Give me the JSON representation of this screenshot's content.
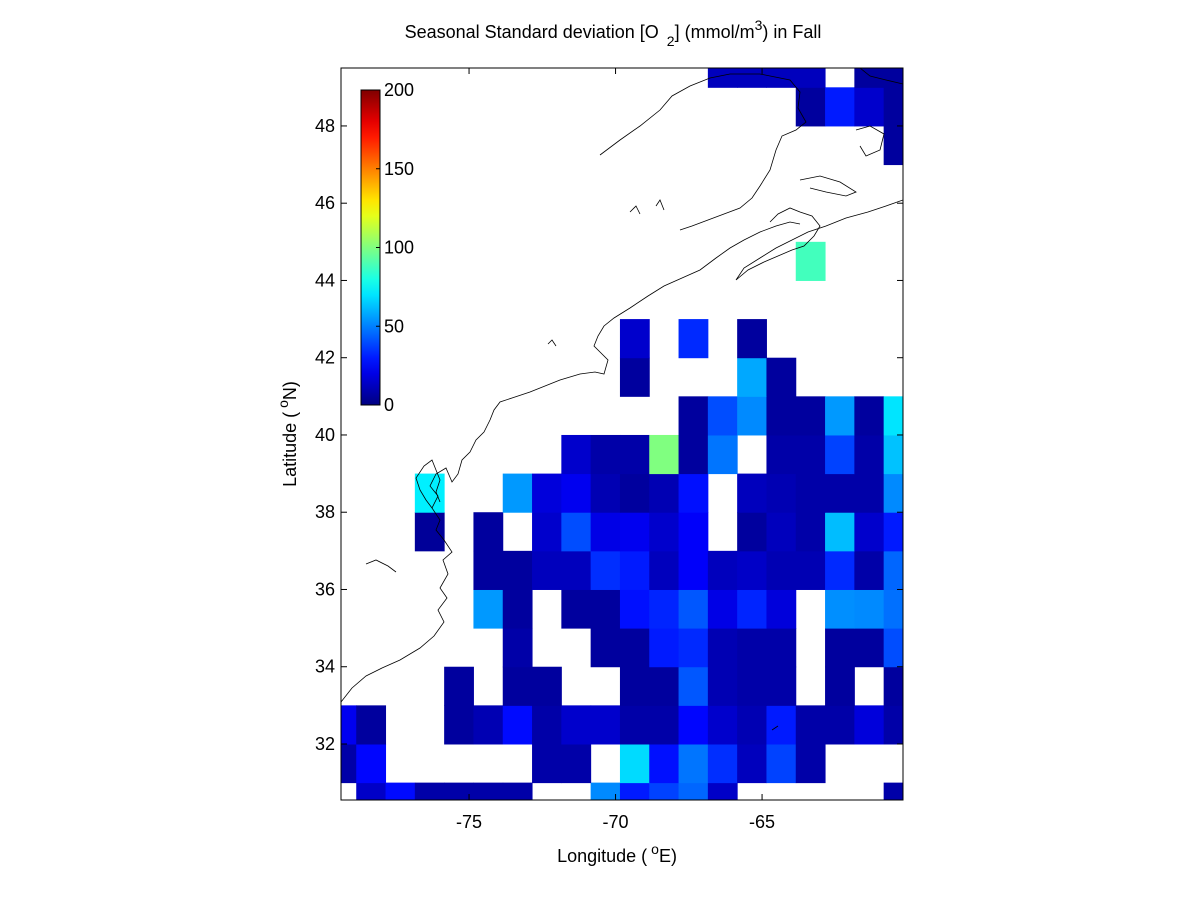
{
  "chart_data": {
    "type": "heatmap",
    "title": [
      "Seasonal Standard deviation [O",
      "2",
      "] (mmol/m",
      "3",
      ") in  Fall"
    ],
    "xlabel": [
      "Longitude (",
      "o",
      "E)"
    ],
    "ylabel": [
      "Latitude (",
      "o",
      "N)"
    ],
    "x": [
      -79.35,
      -78.35,
      -77.35,
      -76.35,
      -75.35,
      -74.35,
      -73.35,
      -72.35,
      -71.35,
      -70.35,
      -69.35,
      -68.35,
      -67.35,
      -66.35,
      -65.35,
      -64.35,
      -63.35,
      -62.35,
      -61.35,
      -60.35
    ],
    "y": [
      30.5,
      31.5,
      32.5,
      33.5,
      34.5,
      35.5,
      36.5,
      37.5,
      38.5,
      39.5,
      40.5,
      41.5,
      42.5,
      43.5,
      44.5,
      45.5,
      46.5,
      47.5,
      48.5,
      49.5
    ],
    "z": [
      [
        null,
        14,
        27,
        8,
        8,
        8,
        8,
        null,
        null,
        52,
        30,
        38,
        45,
        14,
        null,
        null,
        null,
        null,
        null,
        8
      ],
      [
        8,
        26,
        null,
        null,
        null,
        null,
        null,
        8,
        8,
        null,
        68,
        28,
        48,
        34,
        12,
        38,
        8,
        null,
        null,
        null
      ],
      [
        22,
        6,
        null,
        null,
        6,
        10,
        27,
        8,
        15,
        15,
        8,
        8,
        26,
        15,
        10,
        30,
        8,
        8,
        18,
        8
      ],
      [
        null,
        null,
        null,
        null,
        6,
        null,
        6,
        6,
        null,
        null,
        6,
        6,
        42,
        10,
        8,
        8,
        null,
        6,
        null,
        6
      ],
      [
        null,
        null,
        null,
        null,
        null,
        null,
        8,
        null,
        null,
        6,
        6,
        30,
        33,
        10,
        8,
        8,
        null,
        6,
        6,
        40
      ],
      [
        null,
        null,
        null,
        null,
        null,
        55,
        6,
        null,
        6,
        6,
        28,
        32,
        42,
        20,
        32,
        18,
        null,
        53,
        52,
        47
      ],
      [
        null,
        null,
        null,
        null,
        null,
        6,
        6,
        12,
        12,
        34,
        30,
        12,
        24,
        12,
        14,
        10,
        10,
        33,
        8,
        45
      ],
      [
        null,
        null,
        null,
        5,
        null,
        6,
        null,
        15,
        40,
        20,
        22,
        15,
        24,
        null,
        6,
        12,
        8,
        62,
        15,
        30
      ],
      [
        null,
        null,
        null,
        72,
        null,
        null,
        55,
        18,
        22,
        10,
        6,
        10,
        28,
        null,
        12,
        10,
        8,
        8,
        8,
        52
      ],
      [
        null,
        null,
        null,
        null,
        null,
        null,
        null,
        null,
        15,
        8,
        8,
        100,
        6,
        48,
        null,
        8,
        8,
        38,
        8,
        63
      ],
      [
        null,
        null,
        null,
        null,
        null,
        null,
        null,
        null,
        null,
        null,
        null,
        null,
        6,
        40,
        52,
        6,
        6,
        55,
        6,
        70
      ],
      [
        null,
        null,
        null,
        null,
        null,
        null,
        null,
        null,
        null,
        null,
        6,
        null,
        null,
        null,
        58,
        6,
        null,
        null,
        null,
        null
      ],
      [
        null,
        null,
        null,
        null,
        null,
        null,
        null,
        null,
        null,
        null,
        15,
        null,
        33,
        null,
        6,
        null,
        null,
        null,
        null,
        null
      ],
      [
        null,
        null,
        null,
        null,
        null,
        null,
        null,
        null,
        null,
        null,
        null,
        null,
        null,
        null,
        null,
        null,
        null,
        null,
        null,
        null
      ],
      [
        null,
        null,
        null,
        null,
        null,
        null,
        null,
        null,
        null,
        null,
        null,
        null,
        null,
        null,
        null,
        null,
        88,
        null,
        null,
        null
      ],
      [
        null,
        null,
        null,
        null,
        null,
        null,
        null,
        null,
        null,
        null,
        null,
        null,
        null,
        null,
        null,
        null,
        null,
        null,
        null,
        null
      ],
      [
        null,
        null,
        null,
        null,
        null,
        null,
        null,
        null,
        null,
        null,
        null,
        null,
        null,
        null,
        null,
        null,
        null,
        null,
        null,
        null
      ],
      [
        null,
        null,
        null,
        null,
        null,
        null,
        null,
        null,
        null,
        null,
        null,
        null,
        null,
        null,
        null,
        null,
        null,
        null,
        null,
        6
      ],
      [
        null,
        null,
        null,
        null,
        null,
        null,
        null,
        null,
        null,
        null,
        null,
        null,
        null,
        null,
        null,
        null,
        6,
        30,
        15,
        6
      ],
      [
        null,
        null,
        null,
        null,
        null,
        null,
        null,
        null,
        null,
        null,
        null,
        null,
        null,
        12,
        12,
        12,
        12,
        null,
        6,
        6
      ]
    ],
    "xlim": [
      -79.37,
      -60.19
    ],
    "ylim": [
      30.55,
      49.5
    ],
    "xticks": [
      -75,
      -70,
      -65
    ],
    "yticks": [
      32,
      34,
      36,
      38,
      40,
      42,
      44,
      46,
      48
    ],
    "clim": [
      0,
      200
    ],
    "cticks": [
      0,
      50,
      100,
      150,
      200
    ],
    "colormap": "jet"
  }
}
